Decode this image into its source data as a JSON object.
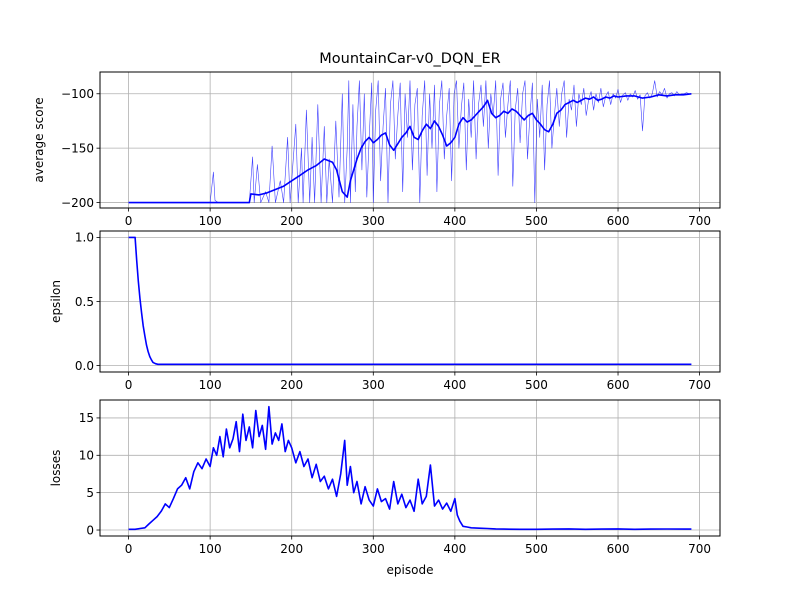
{
  "chart_data": [
    {
      "type": "line",
      "title": "MountainCar-v0_DQN_ER",
      "xlabel": "",
      "ylabel": "average score",
      "xlim": [
        -35,
        725
      ],
      "ylim": [
        -205,
        -80
      ],
      "xticks": [
        0,
        100,
        200,
        300,
        400,
        500,
        600,
        700
      ],
      "xtick_labels": [
        "0",
        "100",
        "200",
        "300",
        "400",
        "500",
        "600",
        "700"
      ],
      "yticks": [
        -200,
        -150,
        -100
      ],
      "ytick_labels": [
        "−200",
        "−150",
        "−100"
      ],
      "grid": true,
      "series": [
        {
          "role": "raw-score",
          "color": "#0000ff",
          "line_width": 0.6,
          "opacity": 0.75,
          "x": [
            0,
            100,
            104,
            106,
            110,
            148,
            152,
            154,
            158,
            162,
            168,
            172,
            176,
            180,
            186,
            190,
            195,
            198,
            205,
            208,
            212,
            214,
            218,
            222,
            225,
            228,
            232,
            236,
            240,
            243,
            246,
            250,
            254,
            258,
            262,
            265,
            268,
            270,
            272,
            275,
            278,
            280,
            283,
            286,
            289,
            292,
            295,
            298,
            300,
            303,
            306,
            309,
            312,
            315,
            318,
            321,
            324,
            327,
            330,
            333,
            336,
            339,
            342,
            345,
            348,
            351,
            354,
            357,
            360,
            363,
            366,
            369,
            372,
            375,
            378,
            381,
            384,
            387,
            390,
            393,
            396,
            399,
            402,
            405,
            408,
            411,
            414,
            417,
            420,
            423,
            426,
            429,
            432,
            435,
            438,
            441,
            444,
            447,
            450,
            453,
            456,
            459,
            462,
            465,
            468,
            471,
            474,
            477,
            480,
            483,
            486,
            489,
            492,
            495,
            498,
            501,
            504,
            507,
            510,
            513,
            516,
            519,
            522,
            525,
            528,
            531,
            534,
            537,
            540,
            543,
            546,
            549,
            552,
            555,
            558,
            561,
            564,
            567,
            570,
            573,
            576,
            579,
            582,
            585,
            588,
            591,
            594,
            597,
            600,
            603,
            606,
            609,
            612,
            615,
            618,
            621,
            624,
            627,
            630,
            633,
            636,
            639,
            642,
            645,
            648,
            651,
            654,
            657,
            660,
            663,
            666,
            669,
            672,
            675,
            678,
            681,
            684,
            687,
            690
          ],
          "values": [
            -200,
            -200,
            -172,
            -198,
            -200,
            -200,
            -158,
            -200,
            -165,
            -200,
            -190,
            -200,
            -148,
            -200,
            -180,
            -200,
            -140,
            -200,
            -128,
            -200,
            -150,
            -200,
            -115,
            -200,
            -140,
            -200,
            -110,
            -200,
            -130,
            -200,
            -160,
            -200,
            -125,
            -195,
            -100,
            -200,
            -150,
            -88,
            -200,
            -110,
            -190,
            -130,
            -88,
            -170,
            -100,
            -195,
            -140,
            -90,
            -200,
            -115,
            -88,
            -180,
            -130,
            -95,
            -200,
            -110,
            -88,
            -160,
            -120,
            -90,
            -190,
            -100,
            -140,
            -88,
            -170,
            -110,
            -95,
            -200,
            -120,
            -88,
            -175,
            -100,
            -150,
            -92,
            -190,
            -110,
            -88,
            -160,
            -120,
            -95,
            -180,
            -100,
            -88,
            -150,
            -112,
            -90,
            -170,
            -105,
            -140,
            -88,
            -160,
            -110,
            -92,
            -130,
            -88,
            -150,
            -100,
            -120,
            -88,
            -175,
            -105,
            -90,
            -140,
            -110,
            -88,
            -185,
            -115,
            -95,
            -145,
            -100,
            -88,
            -160,
            -120,
            -90,
            -200,
            -105,
            -140,
            -92,
            -170,
            -110,
            -88,
            -150,
            -120,
            -95,
            -130,
            -100,
            -88,
            -140,
            -105,
            -115,
            -92,
            -130,
            -100,
            -110,
            -95,
            -120,
            -105,
            -98,
            -115,
            -100,
            -108,
            -95,
            -112,
            -102,
            -98,
            -110,
            -100,
            -104,
            -96,
            -108,
            -101,
            -99,
            -106,
            -100,
            -103,
            -97,
            -105,
            -101,
            -134,
            -102,
            -99,
            -104,
            -100,
            -88,
            -103,
            -98,
            -101,
            -95,
            -104,
            -100,
            -99,
            -102,
            -98,
            -101,
            -100,
            -100,
            -99,
            -100,
            -100
          ]
        },
        {
          "role": "moving-average",
          "color": "#0000ff",
          "line_width": 1.6,
          "opacity": 1,
          "x": [
            0,
            100,
            148,
            150,
            160,
            170,
            180,
            190,
            200,
            210,
            220,
            230,
            240,
            250,
            255,
            262,
            268,
            272,
            276,
            280,
            285,
            290,
            295,
            300,
            305,
            310,
            315,
            320,
            325,
            330,
            335,
            340,
            345,
            350,
            355,
            360,
            365,
            370,
            375,
            380,
            385,
            390,
            395,
            400,
            405,
            410,
            415,
            420,
            425,
            430,
            435,
            440,
            445,
            450,
            455,
            460,
            465,
            470,
            475,
            480,
            485,
            490,
            495,
            500,
            505,
            510,
            515,
            520,
            525,
            530,
            535,
            540,
            545,
            550,
            555,
            560,
            565,
            570,
            575,
            580,
            585,
            590,
            595,
            600,
            610,
            620,
            630,
            640,
            650,
            660,
            670,
            680,
            690
          ],
          "values": [
            -200,
            -200,
            -200,
            -192,
            -193,
            -191,
            -188,
            -185,
            -180,
            -175,
            -170,
            -166,
            -160,
            -163,
            -170,
            -190,
            -195,
            -180,
            -170,
            -160,
            -150,
            -144,
            -140,
            -145,
            -142,
            -138,
            -136,
            -147,
            -152,
            -146,
            -140,
            -136,
            -130,
            -140,
            -142,
            -134,
            -128,
            -132,
            -125,
            -130,
            -138,
            -148,
            -145,
            -140,
            -128,
            -122,
            -126,
            -124,
            -120,
            -116,
            -112,
            -106,
            -118,
            -122,
            -120,
            -116,
            -118,
            -114,
            -116,
            -120,
            -124,
            -120,
            -118,
            -124,
            -128,
            -133,
            -135,
            -128,
            -118,
            -115,
            -110,
            -108,
            -106,
            -108,
            -106,
            -104,
            -105,
            -103,
            -106,
            -105,
            -103,
            -104,
            -102,
            -103,
            -102,
            -102,
            -104,
            -103,
            -101,
            -102,
            -101,
            -101,
            -100
          ]
        }
      ]
    },
    {
      "type": "line",
      "title": "",
      "xlabel": "",
      "ylabel": "epsilon",
      "xlim": [
        -35,
        725
      ],
      "ylim": [
        -0.05,
        1.05
      ],
      "xticks": [
        0,
        100,
        200,
        300,
        400,
        500,
        600,
        700
      ],
      "xtick_labels": [
        "0",
        "100",
        "200",
        "300",
        "400",
        "500",
        "600",
        "700"
      ],
      "yticks": [
        0.0,
        0.5,
        1.0
      ],
      "ytick_labels": [
        "0.0",
        "0.5",
        "1.0"
      ],
      "grid": true,
      "series": [
        {
          "role": "epsilon",
          "color": "#0000ff",
          "line_width": 1.6,
          "opacity": 1,
          "x": [
            0,
            8,
            10,
            12,
            14,
            16,
            18,
            20,
            22,
            24,
            26,
            28,
            30,
            33,
            36,
            40,
            60,
            100,
            200,
            300,
            400,
            500,
            600,
            690
          ],
          "values": [
            1.0,
            1.0,
            0.82,
            0.66,
            0.52,
            0.41,
            0.31,
            0.23,
            0.16,
            0.11,
            0.07,
            0.045,
            0.025,
            0.015,
            0.01,
            0.01,
            0.01,
            0.01,
            0.01,
            0.01,
            0.01,
            0.01,
            0.01,
            0.01
          ]
        }
      ]
    },
    {
      "type": "line",
      "title": "",
      "xlabel": "episode",
      "ylabel": "losses",
      "xlim": [
        -35,
        725
      ],
      "ylim": [
        -0.8,
        17.4
      ],
      "xticks": [
        0,
        100,
        200,
        300,
        400,
        500,
        600,
        700
      ],
      "xtick_labels": [
        "0",
        "100",
        "200",
        "300",
        "400",
        "500",
        "600",
        "700"
      ],
      "yticks": [
        0,
        5,
        10,
        15
      ],
      "ytick_labels": [
        "0",
        "5",
        "10",
        "15"
      ],
      "grid": true,
      "series": [
        {
          "role": "loss",
          "color": "#0000ff",
          "line_width": 1.6,
          "opacity": 1,
          "x": [
            0,
            8,
            14,
            20,
            25,
            30,
            35,
            40,
            45,
            50,
            55,
            60,
            65,
            70,
            75,
            80,
            85,
            90,
            95,
            100,
            104,
            108,
            112,
            116,
            120,
            124,
            128,
            132,
            136,
            140,
            144,
            148,
            152,
            156,
            160,
            164,
            168,
            172,
            176,
            180,
            184,
            188,
            192,
            196,
            200,
            205,
            210,
            215,
            220,
            225,
            230,
            235,
            240,
            245,
            250,
            255,
            260,
            265,
            268,
            272,
            276,
            280,
            285,
            290,
            295,
            300,
            305,
            310,
            315,
            320,
            325,
            330,
            335,
            340,
            345,
            350,
            355,
            360,
            365,
            370,
            375,
            380,
            385,
            390,
            395,
            400,
            403,
            406,
            410,
            415,
            420,
            430,
            440,
            450,
            460,
            480,
            500,
            520,
            540,
            560,
            580,
            600,
            620,
            640,
            660,
            680,
            690
          ],
          "values": [
            0.1,
            0.1,
            0.2,
            0.3,
            0.8,
            1.3,
            1.8,
            2.5,
            3.5,
            3.0,
            4.2,
            5.5,
            6.0,
            7.0,
            5.5,
            7.8,
            9.0,
            8.2,
            9.5,
            8.5,
            11.0,
            10.0,
            12.5,
            9.8,
            13.5,
            11.0,
            12.2,
            14.5,
            10.5,
            15.5,
            12.0,
            13.8,
            11.0,
            16.0,
            12.5,
            14.0,
            10.8,
            16.5,
            11.5,
            13.0,
            12.0,
            14.2,
            10.5,
            12.0,
            11.0,
            9.0,
            10.5,
            8.5,
            9.5,
            7.0,
            8.8,
            6.5,
            7.2,
            5.5,
            6.8,
            4.5,
            7.5,
            12.0,
            6.0,
            8.5,
            5.0,
            6.5,
            3.5,
            5.8,
            4.0,
            3.2,
            5.5,
            3.8,
            4.2,
            2.8,
            6.5,
            3.5,
            4.8,
            3.0,
            4.0,
            2.5,
            6.8,
            3.5,
            4.5,
            8.7,
            3.2,
            4.0,
            2.8,
            3.6,
            2.5,
            4.2,
            2.0,
            1.2,
            0.5,
            0.4,
            0.3,
            0.25,
            0.2,
            0.15,
            0.12,
            0.1,
            0.1,
            0.12,
            0.15,
            0.1,
            0.12,
            0.15,
            0.1,
            0.12,
            0.14,
            0.12,
            0.12
          ]
        }
      ]
    }
  ]
}
